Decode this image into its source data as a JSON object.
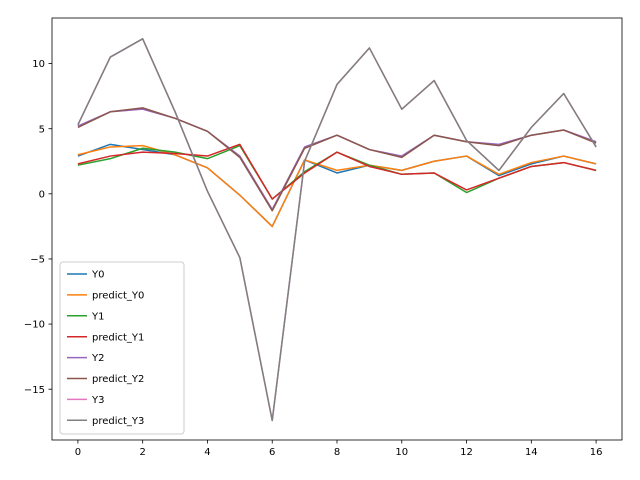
{
  "chart_data": {
    "type": "line",
    "title": "",
    "xlabel": "",
    "ylabel": "",
    "xlim": [
      -0.8,
      16.8
    ],
    "ylim": [
      -18.9,
      13.5
    ],
    "x_ticks": [
      0,
      2,
      4,
      6,
      8,
      10,
      12,
      14,
      16
    ],
    "y_ticks": [
      10,
      5,
      0,
      -5,
      -10,
      -15
    ],
    "y_tick_labels": [
      "10",
      "5",
      "0",
      "−5",
      "−10",
      "−15"
    ],
    "grid": false,
    "legend_position": "lower-left",
    "x": [
      0,
      1,
      2,
      3,
      4,
      5,
      6,
      7,
      8,
      9,
      10,
      11,
      12,
      13,
      14,
      15,
      16
    ],
    "series": [
      {
        "name": "Y0",
        "color": "#1f77b4",
        "values": [
          2.9,
          3.8,
          3.4,
          3.0,
          2.0,
          -0.1,
          -2.5,
          2.6,
          1.6,
          2.2,
          1.8,
          2.5,
          2.9,
          1.4,
          2.3,
          2.9,
          2.3
        ]
      },
      {
        "name": "predict_Y0",
        "color": "#ff7f0e",
        "values": [
          3.0,
          3.6,
          3.7,
          3.0,
          2.0,
          -0.1,
          -2.5,
          2.6,
          1.8,
          2.2,
          1.8,
          2.5,
          2.9,
          1.5,
          2.4,
          2.9,
          2.3
        ]
      },
      {
        "name": "Y1",
        "color": "#2ca02c",
        "values": [
          2.2,
          2.7,
          3.5,
          3.2,
          2.7,
          3.7,
          -0.4,
          1.7,
          3.2,
          2.2,
          1.5,
          1.6,
          0.1,
          1.2,
          2.1,
          2.4,
          1.8
        ]
      },
      {
        "name": "predict_Y1",
        "color": "#d62728",
        "values": [
          2.3,
          2.9,
          3.2,
          3.1,
          2.9,
          3.8,
          -0.4,
          1.6,
          3.2,
          2.1,
          1.5,
          1.6,
          0.3,
          1.2,
          2.1,
          2.4,
          1.8
        ]
      },
      {
        "name": "Y2",
        "color": "#9467bd",
        "values": [
          5.2,
          6.3,
          6.5,
          5.8,
          4.8,
          2.9,
          -1.2,
          3.6,
          4.5,
          3.4,
          2.9,
          4.5,
          4.0,
          3.8,
          4.5,
          4.9,
          4.0
        ]
      },
      {
        "name": "predict_Y2",
        "color": "#8c564b",
        "values": [
          5.1,
          6.3,
          6.6,
          5.8,
          4.8,
          2.8,
          -1.3,
          3.5,
          4.5,
          3.4,
          2.8,
          4.5,
          4.0,
          3.7,
          4.5,
          4.9,
          3.9
        ]
      },
      {
        "name": "Y3",
        "color": "#e377c2",
        "values": [
          5.3,
          10.5,
          11.9,
          6.3,
          0.2,
          -4.9,
          -17.4,
          2.5,
          8.4,
          11.2,
          6.5,
          8.7,
          4.1,
          1.8,
          5.1,
          7.7,
          3.6
        ]
      },
      {
        "name": "predict_Y3",
        "color": "#7f7f7f",
        "values": [
          5.3,
          10.5,
          11.9,
          6.3,
          0.2,
          -4.9,
          -17.4,
          2.5,
          8.4,
          11.2,
          6.5,
          8.7,
          4.1,
          1.8,
          5.1,
          7.7,
          3.6
        ]
      }
    ]
  }
}
